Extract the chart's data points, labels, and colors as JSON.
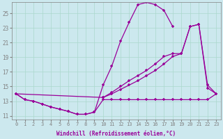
{
  "background_color": "#cce8ee",
  "line_color": "#990099",
  "grid_color": "#aad8cc",
  "xlabel": "Windchill (Refroidissement éolien,°C)",
  "xlim": [
    -0.5,
    23.5
  ],
  "ylim": [
    10.5,
    26.5
  ],
  "yticks": [
    11,
    13,
    15,
    17,
    19,
    21,
    23,
    25
  ],
  "xticks": [
    0,
    1,
    2,
    3,
    4,
    5,
    6,
    7,
    8,
    9,
    10,
    11,
    12,
    13,
    14,
    15,
    16,
    17,
    18,
    19,
    20,
    21,
    22,
    23
  ],
  "curve_upper_x": [
    0,
    1,
    2,
    3,
    4,
    5,
    6,
    7,
    8,
    9,
    10,
    11,
    12,
    13,
    14,
    15,
    16,
    17,
    18
  ],
  "curve_upper_y": [
    14.0,
    13.2,
    13.0,
    12.6,
    12.2,
    11.9,
    11.6,
    11.2,
    11.2,
    11.5,
    15.2,
    17.8,
    21.2,
    23.8,
    26.2,
    26.5,
    26.2,
    25.4,
    23.2
  ],
  "curve_flat_x": [
    0,
    1,
    2,
    3,
    4,
    5,
    6,
    7,
    8,
    9,
    10,
    11,
    12,
    13,
    14,
    15,
    16,
    17,
    18,
    19,
    20,
    21,
    22,
    23
  ],
  "curve_flat_y": [
    14.0,
    13.2,
    13.0,
    12.6,
    12.2,
    11.9,
    11.6,
    11.2,
    11.2,
    11.5,
    13.2,
    13.2,
    13.2,
    13.2,
    13.2,
    13.2,
    13.2,
    13.2,
    13.2,
    13.2,
    13.2,
    13.2,
    13.2,
    14.0
  ],
  "curve_diag_x": [
    0,
    10,
    11,
    12,
    13,
    14,
    15,
    16,
    17,
    18,
    19,
    20,
    21,
    22,
    23
  ],
  "curve_diag_y": [
    14.0,
    13.5,
    14.0,
    14.6,
    15.2,
    15.8,
    16.5,
    17.2,
    18.1,
    19.1,
    19.5,
    23.2,
    23.5,
    14.8,
    14.0
  ],
  "curve_mid_x": [
    10,
    11,
    12,
    13,
    14,
    15,
    16,
    17,
    18,
    19,
    20,
    21,
    22,
    23
  ],
  "curve_mid_y": [
    13.5,
    14.2,
    15.0,
    15.8,
    16.5,
    17.2,
    18.1,
    19.1,
    19.5,
    19.5,
    23.2,
    23.5,
    15.2,
    14.0
  ]
}
